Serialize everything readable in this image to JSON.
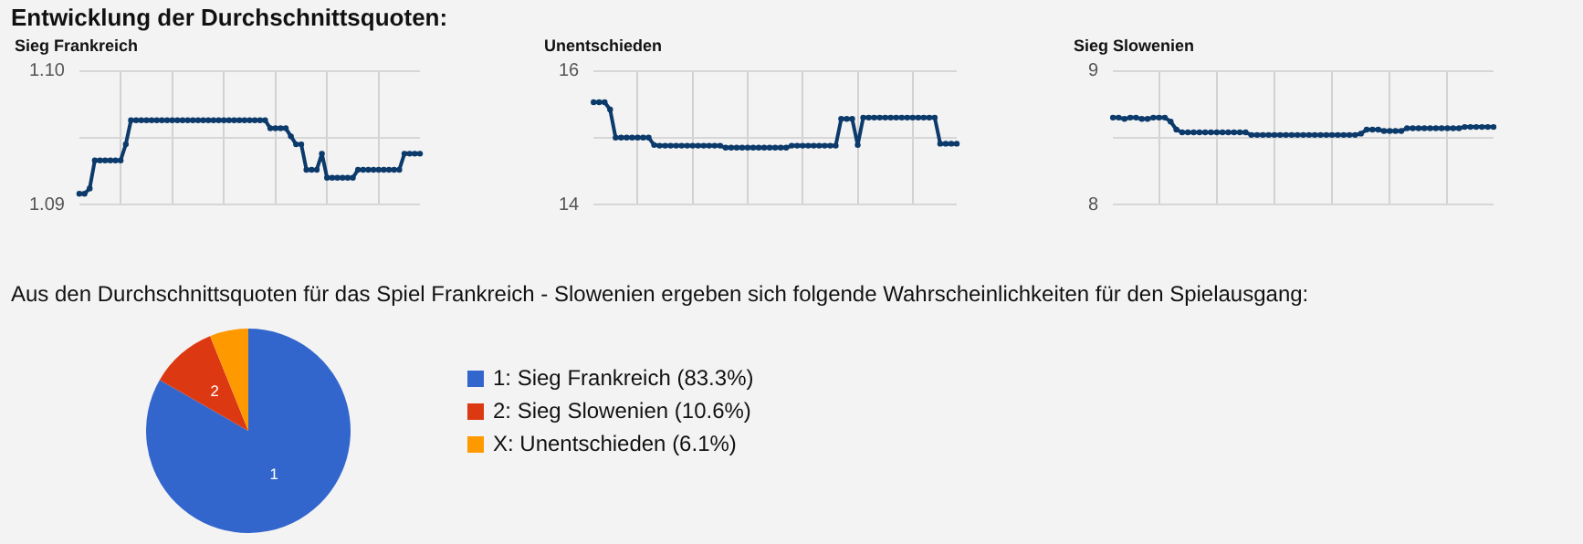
{
  "chart_data": [
    {
      "type": "line",
      "title": "Sieg Frankreich",
      "annotations": [
        "Entwicklung der Durchschnittsquoten:"
      ],
      "categories": [
        null,
        null,
        null,
        null,
        null,
        null,
        null,
        null,
        null,
        null,
        null,
        null,
        null,
        null,
        null,
        null,
        null,
        null,
        null,
        null,
        null,
        null,
        null,
        null,
        null,
        null,
        null,
        null,
        null,
        null,
        null,
        null,
        null,
        null,
        null,
        null,
        null,
        null,
        null,
        null,
        null,
        null,
        null,
        null,
        null,
        null,
        null,
        null,
        null,
        null,
        null,
        null,
        null,
        null,
        null,
        null,
        null,
        null,
        null,
        null,
        null,
        null,
        null,
        null,
        null,
        null,
        null
      ],
      "series": [
        {
          "color": "#0b3a6b",
          "values": [
            1.0908,
            1.0908,
            1.0912,
            1.0933,
            1.0933,
            1.0933,
            1.0933,
            1.0933,
            1.0933,
            1.0945,
            1.0963,
            1.0963,
            1.0963,
            1.0963,
            1.0963,
            1.0963,
            1.0963,
            1.0963,
            1.0963,
            1.0963,
            1.0963,
            1.0963,
            1.0963,
            1.0963,
            1.0963,
            1.0963,
            1.0963,
            1.0963,
            1.0963,
            1.0963,
            1.0963,
            1.0963,
            1.0963,
            1.0963,
            1.0963,
            1.0963,
            1.0963,
            1.0957,
            1.0957,
            1.0957,
            1.0957,
            1.0951,
            1.0945,
            1.0945,
            1.0926,
            1.0926,
            1.0926,
            1.0938,
            1.092,
            1.092,
            1.092,
            1.092,
            1.092,
            1.092,
            1.0926,
            1.0926,
            1.0926,
            1.0926,
            1.0926,
            1.0926,
            1.0926,
            1.0926,
            1.0926,
            1.0938,
            1.0938,
            1.0938,
            1.0938
          ]
        }
      ],
      "ylim": [
        1.09,
        1.1
      ],
      "yticks": [
        1.09,
        {
          "value": 1.1,
          "label": "1.10"
        }
      ],
      "ref_lines": [
        {
          "axis": "y",
          "value": 1.095,
          "color": "#d6d6d6"
        }
      ],
      "grid": true,
      "marker": "circle",
      "line_style": "solid",
      "tick_labels": "y",
      "legend": false
    },
    {
      "type": "line",
      "title": "Unentschieden",
      "categories": [
        null,
        null,
        null,
        null,
        null,
        null,
        null,
        null,
        null,
        null,
        null,
        null,
        null,
        null,
        null,
        null,
        null,
        null,
        null,
        null,
        null,
        null,
        null,
        null,
        null,
        null,
        null,
        null,
        null,
        null,
        null,
        null,
        null,
        null,
        null,
        null,
        null,
        null,
        null,
        null,
        null,
        null,
        null,
        null,
        null,
        null,
        null,
        null,
        null,
        null,
        null,
        null,
        null,
        null,
        null,
        null,
        null,
        null,
        null,
        null,
        null,
        null,
        null,
        null,
        null,
        null,
        null
      ],
      "series": [
        {
          "color": "#0b3a6b",
          "values": [
            15.53,
            15.53,
            15.53,
            15.42,
            15.0,
            15.0,
            15.0,
            15.0,
            15.0,
            15.0,
            15.0,
            14.89,
            14.88,
            14.88,
            14.88,
            14.88,
            14.88,
            14.88,
            14.88,
            14.88,
            14.88,
            14.88,
            14.88,
            14.88,
            14.85,
            14.85,
            14.85,
            14.85,
            14.85,
            14.85,
            14.85,
            14.85,
            14.85,
            14.85,
            14.85,
            14.85,
            14.88,
            14.88,
            14.88,
            14.88,
            14.88,
            14.88,
            14.88,
            14.88,
            14.88,
            15.28,
            15.28,
            15.28,
            14.89,
            15.3,
            15.3,
            15.3,
            15.3,
            15.3,
            15.3,
            15.3,
            15.3,
            15.3,
            15.3,
            15.3,
            15.3,
            15.3,
            15.3,
            14.91,
            14.91,
            14.91,
            14.91
          ]
        }
      ],
      "ylim": [
        14,
        16
      ],
      "yticks": [
        14,
        16
      ],
      "ref_lines": [
        {
          "axis": "y",
          "value": 15,
          "color": "#d6d6d6"
        }
      ],
      "grid": true,
      "marker": "circle",
      "line_style": "solid",
      "tick_labels": "y",
      "legend": false
    },
    {
      "type": "line",
      "title": "Sieg Slowenien",
      "categories": [
        null,
        null,
        null,
        null,
        null,
        null,
        null,
        null,
        null,
        null,
        null,
        null,
        null,
        null,
        null,
        null,
        null,
        null,
        null,
        null,
        null,
        null,
        null,
        null,
        null,
        null,
        null,
        null,
        null,
        null,
        null,
        null,
        null,
        null,
        null,
        null,
        null,
        null,
        null,
        null,
        null,
        null,
        null,
        null,
        null,
        null,
        null,
        null,
        null,
        null,
        null,
        null,
        null,
        null,
        null,
        null,
        null,
        null,
        null,
        null,
        null,
        null,
        null,
        null,
        null,
        null,
        null
      ],
      "series": [
        {
          "color": "#0b3a6b",
          "values": [
            8.65,
            8.65,
            8.64,
            8.65,
            8.65,
            8.64,
            8.64,
            8.65,
            8.65,
            8.65,
            8.62,
            8.56,
            8.54,
            8.54,
            8.54,
            8.54,
            8.54,
            8.54,
            8.54,
            8.54,
            8.54,
            8.54,
            8.54,
            8.54,
            8.52,
            8.52,
            8.52,
            8.52,
            8.52,
            8.52,
            8.52,
            8.52,
            8.52,
            8.52,
            8.52,
            8.52,
            8.52,
            8.52,
            8.52,
            8.52,
            8.52,
            8.52,
            8.52,
            8.53,
            8.56,
            8.56,
            8.56,
            8.55,
            8.55,
            8.55,
            8.55,
            8.57,
            8.57,
            8.57,
            8.57,
            8.57,
            8.57,
            8.57,
            8.57,
            8.57,
            8.57,
            8.58,
            8.58,
            8.58,
            8.58,
            8.58,
            8.58
          ]
        }
      ],
      "ylim": [
        8,
        9
      ],
      "yticks": [
        8,
        9
      ],
      "ref_lines": [
        {
          "axis": "y",
          "value": 8.5,
          "color": "#d6d6d6"
        }
      ],
      "grid": true,
      "marker": "circle",
      "line_style": "solid",
      "tick_labels": "y",
      "legend": false
    },
    {
      "type": "pie",
      "title": "Aus den Durchschnittsquoten für das Spiel Frankreich - Slowenien ergeben sich folgende Wahrscheinlichkeiten für den Spielausgang:",
      "categories": [
        "1: Sieg Frankreich (83.3%)",
        "2: Sieg Slowenien (10.6%)",
        "X: Unentschieden (6.1%)"
      ],
      "values": [
        83.3,
        10.6,
        6.1
      ],
      "colors": [
        "#3366cc",
        "#dc3912",
        "#ff9900"
      ],
      "annotations": [
        {
          "text": "1",
          "x": "1: Sieg Frankreich (83.3%)"
        },
        {
          "text": "2",
          "x": "2: Sieg Slowenien (10.6%)"
        }
      ],
      "legend": "right"
    }
  ]
}
